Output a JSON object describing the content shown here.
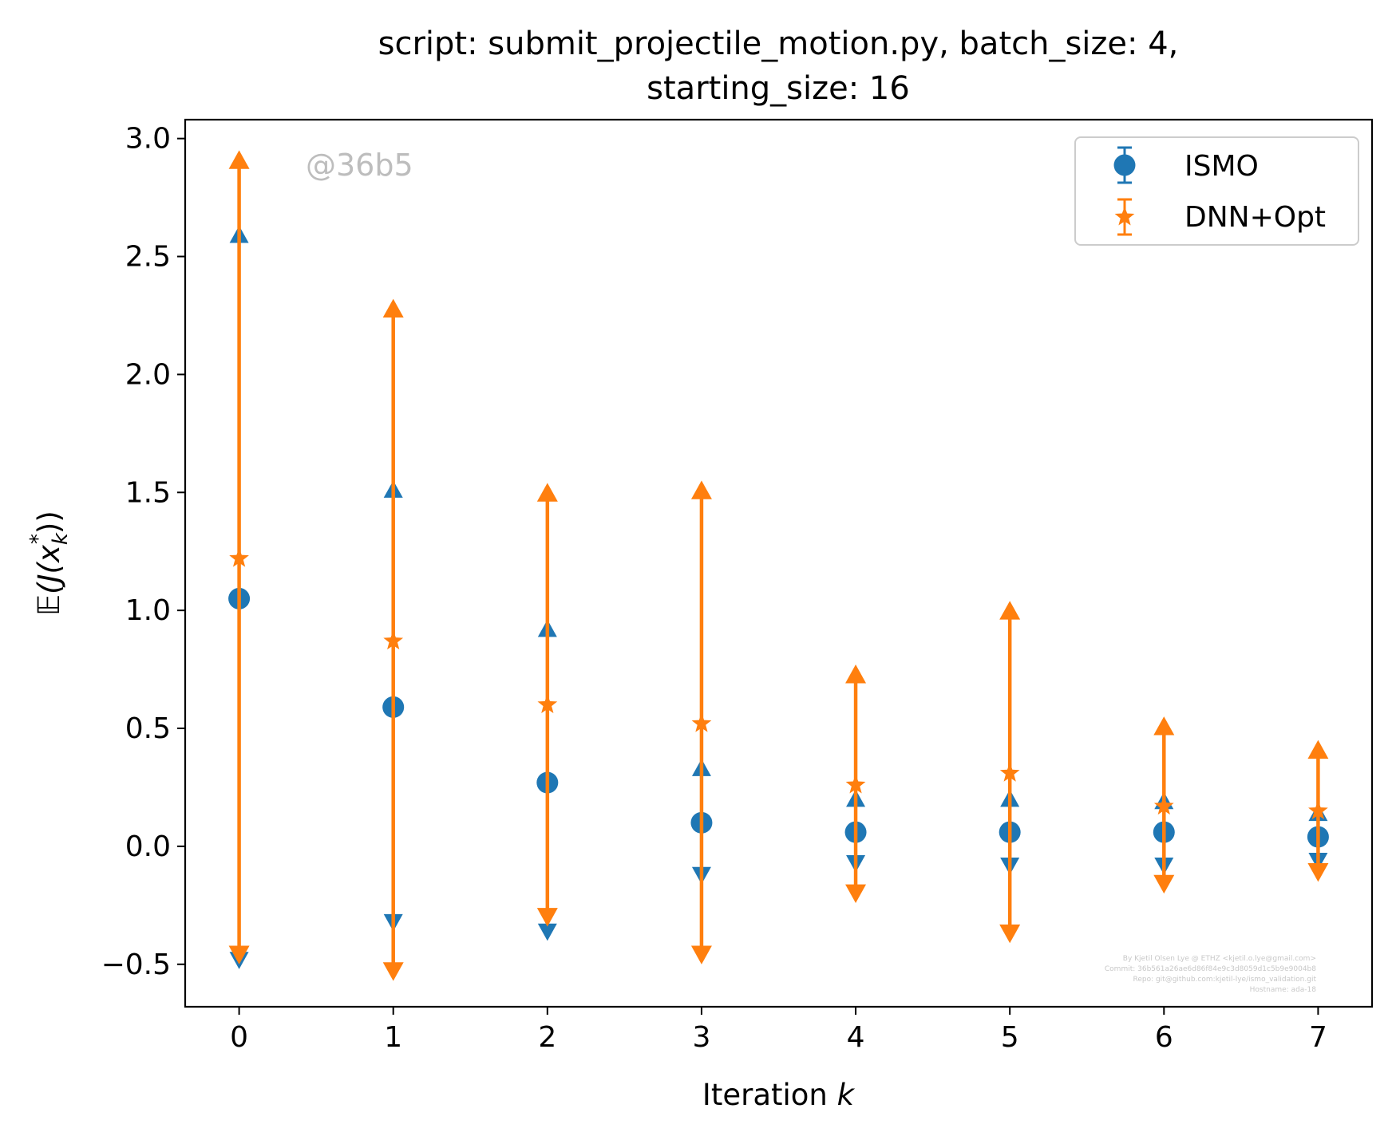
{
  "chart_data": {
    "type": "scatter",
    "title_line1": "script: submit_projectile_motion.py, batch_size: 4,",
    "title_line2": "starting_size: 16",
    "xlabel_prefix": "Iteration ",
    "xlabel_var": "k",
    "ylabel_E": "𝔼",
    "ylabel_J": "(J(x",
    "ylabel_sub": "k",
    "ylabel_sup": "*",
    "ylabel_close": "))",
    "xlim": [
      -0.35,
      7.35
    ],
    "ylim": [
      -0.68,
      3.08
    ],
    "xticks": [
      0,
      1,
      2,
      3,
      4,
      5,
      6,
      7
    ],
    "xtick_labels": [
      "0",
      "1",
      "2",
      "3",
      "4",
      "5",
      "6",
      "7"
    ],
    "yticks": [
      -0.5,
      0.0,
      0.5,
      1.0,
      1.5,
      2.0,
      2.5,
      3.0
    ],
    "ytick_labels": [
      "−0.5",
      "0.0",
      "0.5",
      "1.0",
      "1.5",
      "2.0",
      "2.5",
      "3.0"
    ],
    "grid": false,
    "legend_position": "top-right",
    "series": [
      {
        "name": "ISMO",
        "color": "#1f77b4",
        "marker": "circle",
        "x": [
          0,
          1,
          2,
          3,
          4,
          5,
          6,
          7
        ],
        "y": [
          1.05,
          0.59,
          0.27,
          0.1,
          0.06,
          0.06,
          0.06,
          0.04
        ],
        "upper": [
          2.59,
          1.51,
          0.92,
          0.33,
          0.2,
          0.2,
          0.19,
          0.14
        ],
        "lower": [
          -0.48,
          -0.32,
          -0.36,
          -0.12,
          -0.07,
          -0.08,
          -0.08,
          -0.06
        ]
      },
      {
        "name": "DNN+Opt",
        "color": "#ff7f0e",
        "marker": "star",
        "x": [
          0,
          1,
          2,
          3,
          4,
          5,
          6,
          7
        ],
        "y": [
          1.22,
          0.87,
          0.6,
          0.52,
          0.26,
          0.31,
          0.17,
          0.15
        ],
        "upper": [
          2.92,
          2.29,
          1.51,
          1.52,
          0.74,
          1.01,
          0.52,
          0.42
        ],
        "lower": [
          -0.47,
          -0.54,
          -0.31,
          -0.47,
          -0.21,
          -0.38,
          -0.17,
          -0.12
        ]
      }
    ],
    "watermark": "@36b5",
    "footer_lines": [
      "By Kjetil Olsen Lye @ ETHZ <kjetil.o.lye@gmail.com>",
      "Commit: 36b561a26ae6d86f84e9c3d8059d1c5b9e9004b8",
      "Repo: git@github.com:kjetil-lye/ismo_validation.git",
      "Hostname: ada-18"
    ]
  }
}
